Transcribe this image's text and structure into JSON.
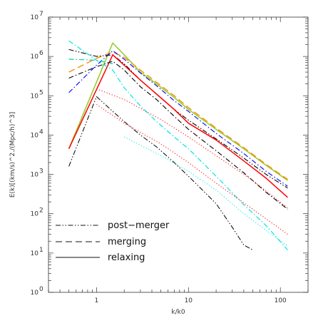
{
  "chart_data": {
    "type": "line",
    "xlabel": "k/k0",
    "ylabel": "E(k)[(km/s)^2./(Mpc/h)^3]",
    "xscale": "log",
    "yscale": "log",
    "xlim": [
      0.3,
      200
    ],
    "ylim": [
      1,
      10000000
    ],
    "grid": false,
    "x_ticks": [
      {
        "value": 1,
        "label": "1"
      },
      {
        "value": 10,
        "label": "10"
      },
      {
        "value": 100,
        "label": "100"
      }
    ],
    "y_ticks": [
      {
        "value": 1,
        "base": "10",
        "exp": "0"
      },
      {
        "value": 10,
        "base": "10",
        "exp": "1"
      },
      {
        "value": 100,
        "base": "10",
        "exp": "2"
      },
      {
        "value": 1000,
        "base": "10",
        "exp": "3"
      },
      {
        "value": 10000,
        "base": "10",
        "exp": "4"
      },
      {
        "value": 100000,
        "base": "10",
        "exp": "5"
      },
      {
        "value": 1000000,
        "base": "10",
        "exp": "6"
      },
      {
        "value": 10000000,
        "base": "10",
        "exp": "7"
      }
    ],
    "legend_position": "bottom-left",
    "legend": [
      {
        "label": "post−merger",
        "dash": "dashdotdot"
      },
      {
        "label": "merging",
        "dash": "dash"
      },
      {
        "label": "relaxing",
        "dash": "solid"
      }
    ],
    "series": [
      {
        "color": "#9acd32",
        "dash": "solid",
        "width": 1.6,
        "points": [
          [
            0.5,
            4500
          ],
          [
            1.5,
            2200000
          ],
          [
            2,
            1100000
          ],
          [
            3,
            400000
          ],
          [
            4.5,
            200000
          ],
          [
            7,
            90000
          ],
          [
            10,
            45000
          ],
          [
            20,
            14000
          ],
          [
            40,
            4500
          ],
          [
            70,
            1700
          ],
          [
            120,
            700
          ]
        ]
      },
      {
        "color": "#ff8c00",
        "dash": "dash",
        "width": 1.4,
        "points": [
          [
            0.5,
            400000
          ],
          [
            1,
            900000
          ],
          [
            1.5,
            1300000
          ],
          [
            2,
            950000
          ],
          [
            3,
            450000
          ],
          [
            4.5,
            220000
          ],
          [
            7,
            100000
          ],
          [
            10,
            50000
          ],
          [
            20,
            15000
          ],
          [
            40,
            4800
          ],
          [
            70,
            1800
          ],
          [
            120,
            750
          ]
        ]
      },
      {
        "color": "#000000",
        "dash": "dashdotdot",
        "width": 1.1,
        "points": [
          [
            0.5,
            1500000
          ],
          [
            1,
            1000000
          ],
          [
            1.5,
            1100000
          ],
          [
            2,
            650000
          ],
          [
            3,
            250000
          ],
          [
            4.5,
            110000
          ],
          [
            7,
            45000
          ],
          [
            10,
            24000
          ],
          [
            20,
            8000
          ],
          [
            40,
            2600
          ],
          [
            70,
            1000
          ],
          [
            120,
            450
          ]
        ]
      },
      {
        "color": "#0000ff",
        "dash": "dashdot",
        "width": 1.1,
        "points": [
          [
            0.5,
            120000
          ],
          [
            1,
            600000
          ],
          [
            1.5,
            1400000
          ],
          [
            2,
            850000
          ],
          [
            3,
            380000
          ],
          [
            4.5,
            180000
          ],
          [
            7,
            75000
          ],
          [
            10,
            40000
          ],
          [
            20,
            11000
          ],
          [
            40,
            3400
          ],
          [
            70,
            1200
          ],
          [
            120,
            500
          ]
        ]
      },
      {
        "color": "#ff0000",
        "dash": "solid",
        "width": 1.5,
        "points": [
          [
            0.5,
            4500
          ],
          [
            1.5,
            1100000
          ],
          [
            2,
            600000
          ],
          [
            3,
            250000
          ],
          [
            4.5,
            110000
          ],
          [
            7,
            45000
          ],
          [
            10,
            20000
          ],
          [
            20,
            7500
          ],
          [
            40,
            2200
          ],
          [
            70,
            800
          ],
          [
            120,
            260
          ]
        ]
      },
      {
        "color": "#000000",
        "dash": "dashdot",
        "width": 1.1,
        "points": [
          [
            0.5,
            280000
          ],
          [
            1,
            550000
          ],
          [
            1.5,
            750000
          ],
          [
            2,
            450000
          ],
          [
            3,
            170000
          ],
          [
            4.5,
            80000
          ],
          [
            7,
            30000
          ],
          [
            10,
            14000
          ],
          [
            20,
            4000
          ],
          [
            40,
            1100
          ],
          [
            70,
            350
          ],
          [
            120,
            130
          ]
        ]
      },
      {
        "color": "#00e5e5",
        "dash": "dashdot",
        "width": 1.2,
        "points": [
          [
            0.5,
            2500000
          ],
          [
            1,
            800000
          ],
          [
            1.5,
            450000
          ],
          [
            2,
            160000
          ],
          [
            3,
            55000
          ],
          [
            4.5,
            22000
          ],
          [
            7,
            9000
          ],
          [
            10,
            4500
          ],
          [
            20,
            900
          ],
          [
            40,
            170
          ],
          [
            70,
            50
          ],
          [
            120,
            12
          ]
        ]
      },
      {
        "color": "#00d4a0",
        "dash": "dashdot",
        "width": 1.2,
        "points": [
          [
            0.5,
            850000
          ],
          [
            1,
            800000
          ],
          [
            1.5,
            650000
          ]
        ]
      },
      {
        "color": "#000000",
        "dash": "dashdotdot",
        "width": 1.0,
        "points": [
          [
            0.5,
            1600
          ],
          [
            1,
            95000
          ],
          [
            1.5,
            40000
          ],
          [
            2,
            22000
          ],
          [
            3,
            10000
          ],
          [
            4.5,
            5000
          ],
          [
            7,
            2000
          ],
          [
            10,
            900
          ],
          [
            20,
            180
          ],
          [
            30,
            45
          ],
          [
            40,
            16
          ],
          [
            50,
            12
          ]
        ]
      },
      {
        "color": "#ff0000",
        "dash": "dot",
        "width": 1.0,
        "points": [
          [
            1,
            150000
          ],
          [
            2,
            80000
          ],
          [
            5,
            25000
          ],
          [
            10,
            9000
          ],
          [
            20,
            3000
          ],
          [
            50,
            700
          ],
          [
            120,
            140
          ]
        ]
      },
      {
        "color": "#ff0000",
        "dash": "dot",
        "width": 1.0,
        "points": [
          [
            1,
            60000
          ],
          [
            2,
            20000
          ],
          [
            5,
            6000
          ],
          [
            10,
            2000
          ],
          [
            20,
            600
          ],
          [
            50,
            130
          ],
          [
            120,
            30
          ]
        ]
      },
      {
        "color": "#00e5e5",
        "dash": "dot",
        "width": 1.0,
        "points": [
          [
            2,
            9000
          ],
          [
            5,
            3000
          ],
          [
            10,
            1200
          ],
          [
            20,
            400
          ],
          [
            40,
            100
          ],
          [
            80,
            30
          ],
          [
            120,
            15
          ]
        ]
      }
    ]
  }
}
